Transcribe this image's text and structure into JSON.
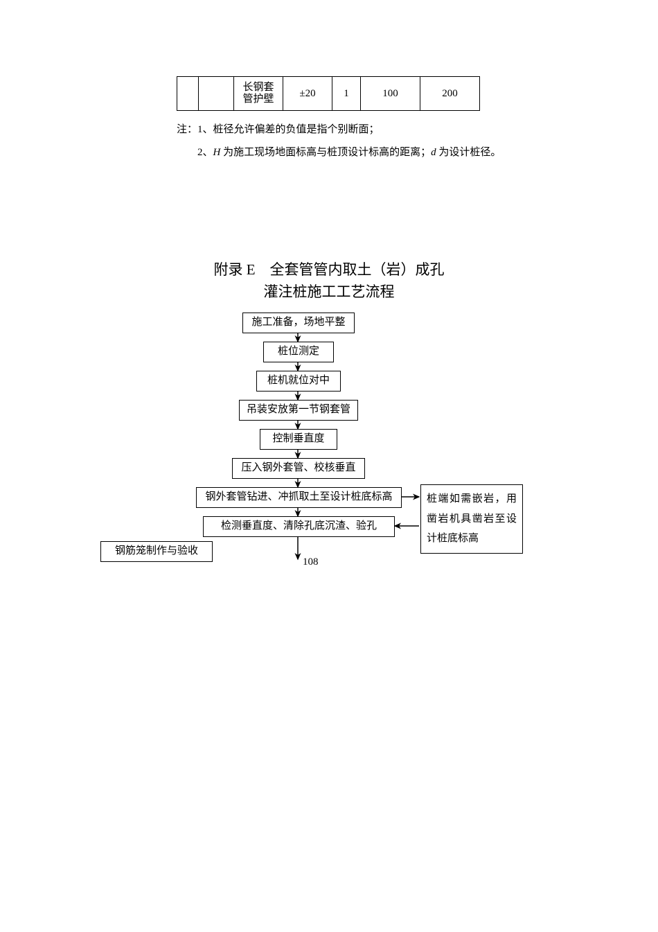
{
  "table": {
    "row": {
      "c2": "长钢套\n管护壁",
      "c3": "±20",
      "c4": "1",
      "c5": "100",
      "c6": "200"
    }
  },
  "notes": {
    "prefix": "注：",
    "item1_num": "1、",
    "item1_text": "桩径允许偏差的负值是指个别断面；",
    "item2_num": "2、",
    "item2_text_a": "H",
    "item2_text_b": " 为施工现场地面标高与桩顶设计标高的距离；",
    "item2_text_c": "d",
    "item2_text_d": " 为设计桩径。"
  },
  "appendix": {
    "line1": "附录 E　全套管管内取土（岩）成孔",
    "line2": "灌注桩施工工艺流程"
  },
  "flow": {
    "n1": "施工准备，场地平整",
    "n2": "桩位测定",
    "n3": "桩机就位对中",
    "n4": "吊装安放第一节钢套管",
    "n5": "控制垂直度",
    "n6": "压入钢外套管、校核垂直",
    "n7": "钢外套管钻进、冲抓取土至设计桩底标高",
    "n8": "检测垂直度、清除孔底沉渣、验孔",
    "side_right": "桩端如需嵌岩，用凿岩机具凿岩至设计桩底标高",
    "side_left": "钢筋笼制作与验收"
  },
  "pagenum": "108",
  "colors": {
    "ink": "#000000",
    "bg": "#ffffff"
  }
}
